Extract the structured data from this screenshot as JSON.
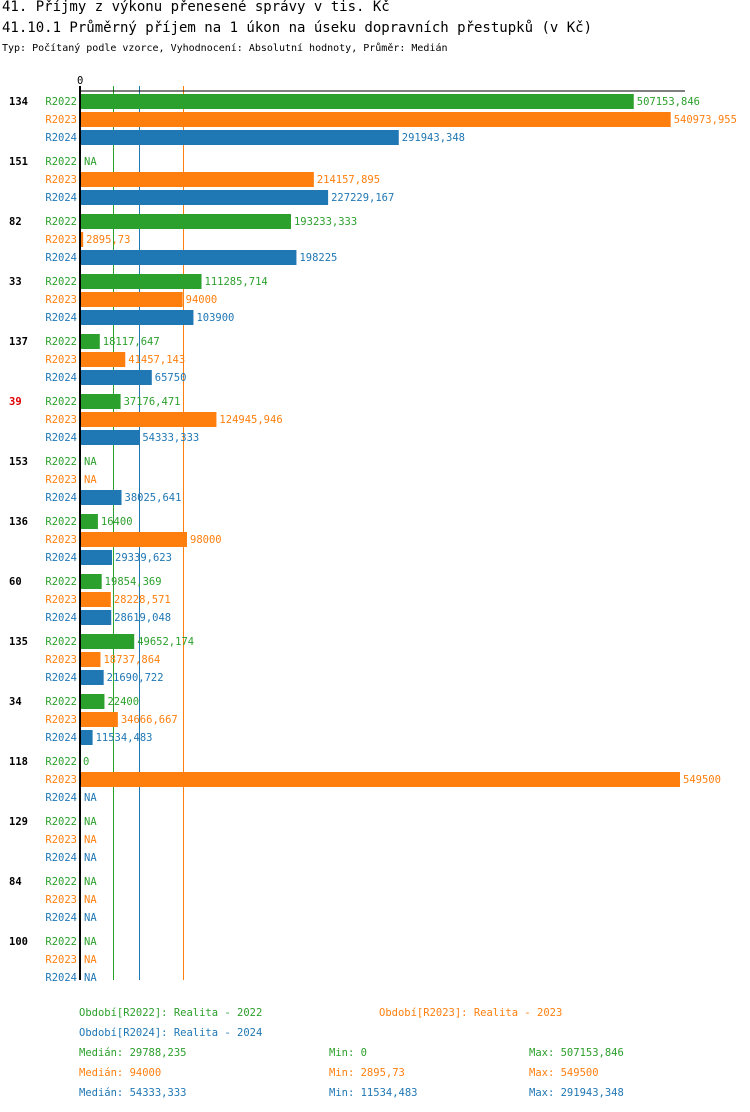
{
  "title": "41. Příjmy z výkonu přenesené správy v tis. Kč",
  "subtitle": "41.10.1 Průměrný příjem na 1 úkon na úseku dopravních přestupků (v Kč)",
  "info": "Typ: Počítaný podle vzorce, Vyhodnocení: Absolutní hodnoty, Průměr: Medián",
  "chart_data": {
    "type": "bar",
    "orientation": "horizontal",
    "xlim": [
      0,
      549500
    ],
    "x_tick_labels": [
      "0"
    ],
    "colors": {
      "R2022": "#2ca02c",
      "R2023": "#ff7f0e",
      "R2024": "#1f77b4"
    },
    "highlight_category": "39",
    "highlight_color": "#e00000",
    "categories": [
      "134",
      "151",
      "82",
      "33",
      "137",
      "39",
      "153",
      "136",
      "60",
      "135",
      "34",
      "118",
      "129",
      "84",
      "100"
    ],
    "series": [
      {
        "name": "R2022",
        "values": [
          "507153,846",
          "NA",
          "193233,333",
          "111285,714",
          "18117,647",
          "37176,471",
          "NA",
          "16400",
          "19854,369",
          "49652,174",
          "22400",
          "0",
          "NA",
          "NA",
          "NA"
        ]
      },
      {
        "name": "R2023",
        "values": [
          "540973,955",
          "214157,895",
          "2895,73",
          "94000",
          "41457,143",
          "124945,946",
          "NA",
          "98000",
          "28228,571",
          "18737,864",
          "34666,667",
          "549500",
          "NA",
          "NA",
          "NA"
        ]
      },
      {
        "name": "R2024",
        "values": [
          "291943,348",
          "227229,167",
          "198225",
          "103900",
          "65750",
          "54333,333",
          "38025,641",
          "29339,623",
          "28619,048",
          "21690,722",
          "11534,483",
          "NA",
          "NA",
          "NA",
          "NA"
        ]
      }
    ],
    "median_lines": {
      "R2022": 29788.235,
      "R2023": 94000,
      "R2024": 54333.333
    }
  },
  "legend": {
    "r2022": "Období[R2022]: Realita - 2022",
    "r2023": "Období[R2023]: Realita - 2023",
    "r2024": "Období[R2024]: Realita - 2024"
  },
  "stats": [
    {
      "median": "Medián: 29788,235",
      "min": "Min: 0",
      "max": "Max: 507153,846"
    },
    {
      "median": "Medián: 94000",
      "min": "Min: 2895,73",
      "max": "Max: 549500"
    },
    {
      "median": "Medián: 54333,333",
      "min": "Min: 11534,483",
      "max": "Max: 291943,348"
    }
  ]
}
